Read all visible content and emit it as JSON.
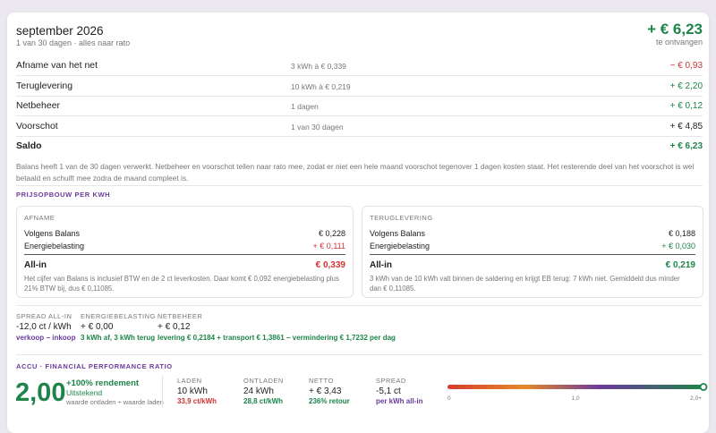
{
  "header": {
    "title": "september 2026",
    "subtitle": "1 van 30 dagen · alles naar rato",
    "total": "+ € 6,23",
    "total_caption": "te ontvangen"
  },
  "rows": [
    {
      "label": "Afname van het net",
      "detail": "3 kWh à € 0,339",
      "amount": "− € 0,93"
    },
    {
      "label": "Teruglevering",
      "detail": "10 kWh à € 0,219",
      "amount": "+ € 2,20"
    },
    {
      "label": "Netbeheer",
      "detail": "1 dagen",
      "amount": "+ € 0,12"
    },
    {
      "label": "Voorschot",
      "detail": "1 van 30 dagen",
      "amount": "+ € 4,85"
    },
    {
      "label": "Saldo",
      "amount": "+ € 6,23"
    }
  ],
  "note": "Balans heeft 1 van de 30 dagen verwerkt. Netbeheer en voorschot tellen naar rato mee, zodat er niet een hele maand voorschot tegenover 1 dagen kosten staat. Het resterende deel van het voorschot is wel betaald en schuift mee zodra de maand compleet is.",
  "price": {
    "title": "PRIJSOPBOUW PER KWH",
    "cards": [
      {
        "title": "AFNAME",
        "lines": [
          [
            "Volgens Balans",
            "€ 0,228"
          ],
          [
            "Energiebelasting",
            "+ € 0,111"
          ]
        ],
        "total_label": "All-in",
        "total": "€ 0,339",
        "note": "Het cijfer van Balans is inclusief BTW en de 2 ct leverkosten. Daar komt € 0,092 energiebelasting plus 21% BTW bij, dus € 0,11085."
      },
      {
        "title": "TERUGLEVERING",
        "lines": [
          [
            "Volgens Balans",
            "€ 0,188"
          ],
          [
            "Energiebelasting",
            "+ € 0,030"
          ]
        ],
        "total_label": "All-in",
        "total": "€ 0,219",
        "note": "3 kWh van de 10 kWh valt binnen de saldering en krijgt EB terug: 7 kWh niet. Gemiddeld dus minder dan € 0,11085."
      }
    ]
  },
  "stats": [
    {
      "label": "SPREAD ALL-IN",
      "value": "-12,0 ct / kWh",
      "sub": "verkoop − inkoop"
    },
    {
      "label": "ENERGIEBELASTING",
      "value": "+ € 0,00",
      "sub": "3 kWh af, 3 kWh terug"
    },
    {
      "label": "NETBEHEER",
      "value": "+ € 0,12",
      "sub": "levering € 0,2184 + transport € 1,3861 − vermindering € 1,7232 per dag"
    }
  ],
  "accu": {
    "title": "ACCU · FINANCIAL PERFORMANCE RATIO",
    "score": {
      "value": 2,
      "label": "2,00"
    },
    "headline": "+100% rendement",
    "rating": "Uitstekend",
    "formula": "waarde ontladen ÷ waarde laden",
    "metrics": [
      {
        "label": "LADEN",
        "value": "10 kWh",
        "sub": "33,9 ct/kWh"
      },
      {
        "label": "ONTLADEN",
        "value": "24 kWh",
        "sub": "28,8 ct/kWh"
      },
      {
        "label": "NETTO",
        "value": "+ € 3,43",
        "sub": "236% retour"
      },
      {
        "label": "SPREAD",
        "value": "-5,1 ct",
        "sub": "per kWh all-in"
      }
    ],
    "gauge": {
      "lim": [
        0,
        2
      ],
      "ticks": [
        {
          "value": 0,
          "label": "0"
        },
        {
          "value": 1,
          "label": "1,0"
        },
        {
          "value": 2,
          "label": "2,0+"
        }
      ]
    }
  }
}
